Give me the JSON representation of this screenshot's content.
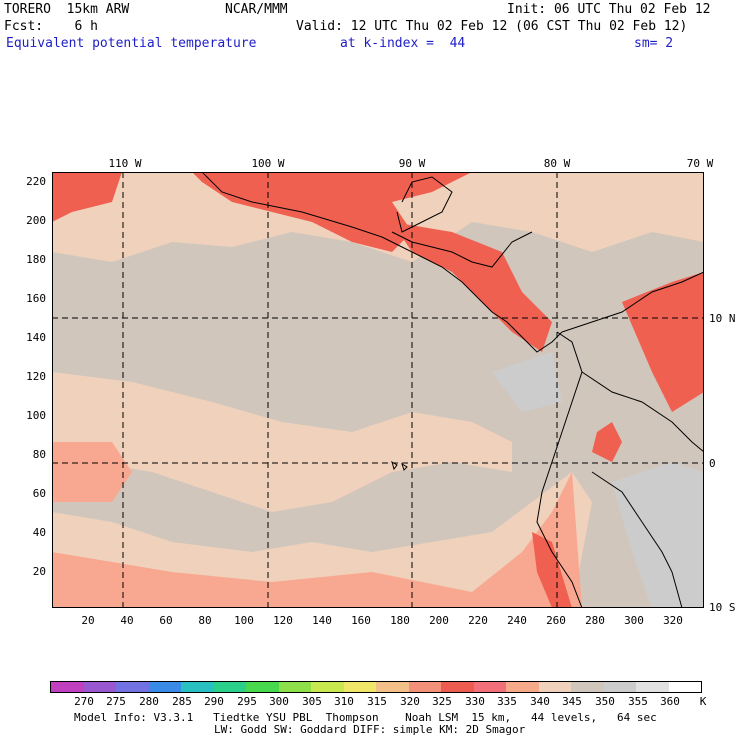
{
  "header": {
    "model": "TORERO  15km ARW",
    "center": "NCAR/MMM",
    "init": "Init: 06 UTC Thu 02 Feb 12",
    "fcst": "Fcst:    6 h",
    "valid": "Valid: 12 UTC Thu 02 Feb 12 (06 CST Thu 02 Feb 12)",
    "field": "Equivalent potential temperature",
    "level": "at k-index =  44",
    "smooth": "sm= 2"
  },
  "map": {
    "lon_labels": [
      "110 W",
      "100 W",
      "90 W",
      "80 W",
      "70 W"
    ],
    "lat_labels": [
      "10 N",
      "0",
      "10 S"
    ],
    "y_ticks": [
      "220",
      "200",
      "180",
      "160",
      "140",
      "120",
      "100",
      "80",
      "60",
      "40",
      "20"
    ],
    "x_ticks": [
      "20",
      "40",
      "60",
      "80",
      "100",
      "120",
      "140",
      "160",
      "180",
      "200",
      "220",
      "240",
      "260",
      "280",
      "300",
      "320"
    ]
  },
  "colorbar": {
    "labels": [
      "270",
      "275",
      "280",
      "285",
      "290",
      "295",
      "300",
      "305",
      "310",
      "315",
      "320",
      "325",
      "330",
      "335",
      "340",
      "345",
      "350",
      "355",
      "360"
    ],
    "unit": "K",
    "colors": [
      "#c040c0",
      "#9a58d0",
      "#7272e2",
      "#3a8ae8",
      "#28c0c0",
      "#2ad08a",
      "#48d84e",
      "#8ee04a",
      "#c8e850",
      "#f0e66a",
      "#f2c088",
      "#f2907a",
      "#ec5c50",
      "#f2707a",
      "#f6aa8a",
      "#f0d2bc",
      "#d0c6bc",
      "#cccccc",
      "#e2e2e2",
      "#ffffff"
    ]
  },
  "map_colors": {
    "ocean_340": "#f0d2bc",
    "ocean_345": "#d0c6bc",
    "warm_335": "#f8a890",
    "hot_330": "#f06050",
    "cool_350": "#cccccc"
  },
  "footer": {
    "line1": "Model Info: V3.3.1   Tiedtke YSU PBL  Thompson    Noah LSM  15 km,   44 levels,   64 sec",
    "line2": "LW: Godd SW: Goddard DIFF: simple KM: 2D Smagor"
  }
}
